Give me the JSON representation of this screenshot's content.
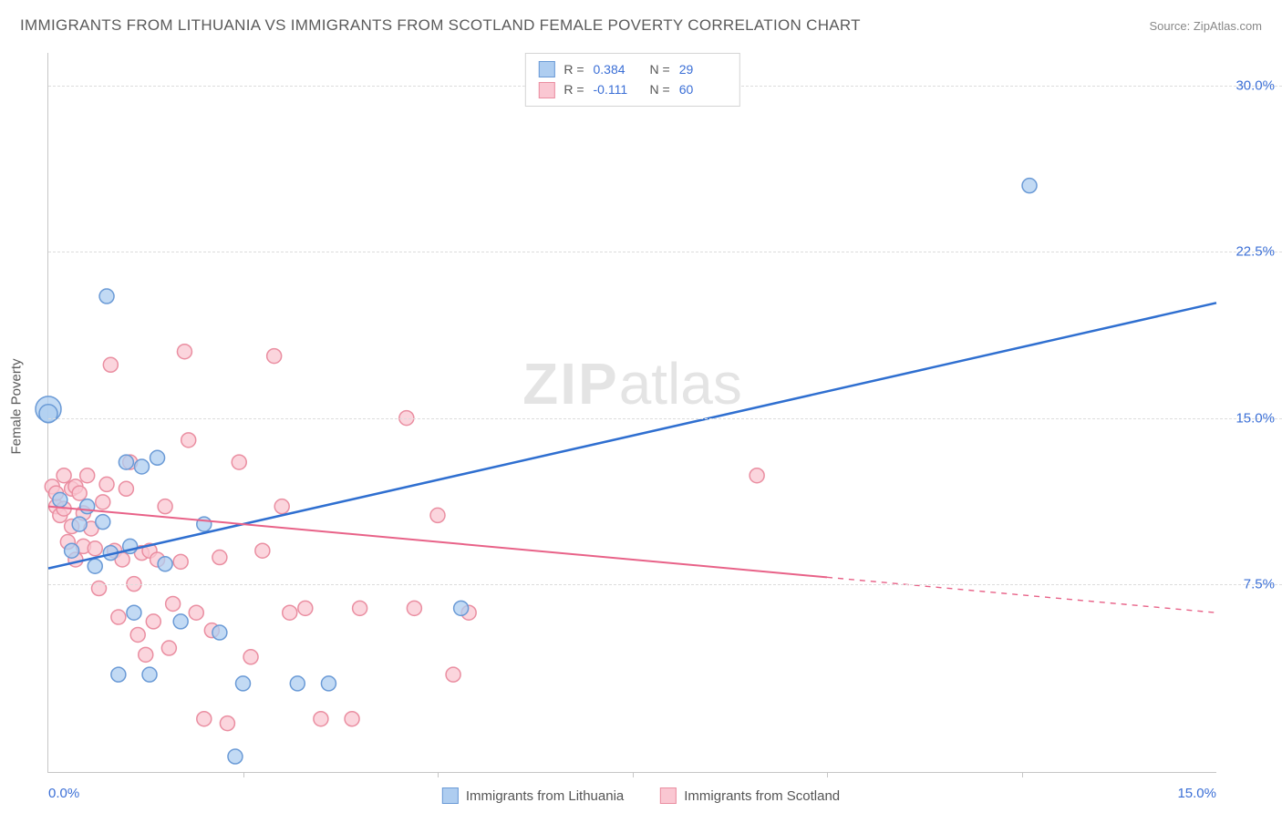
{
  "title": "IMMIGRANTS FROM LITHUANIA VS IMMIGRANTS FROM SCOTLAND FEMALE POVERTY CORRELATION CHART",
  "source_label": "Source: ZipAtlas.com",
  "watermark": {
    "zip": "ZIP",
    "atlas": "atlas"
  },
  "y_axis_title": "Female Poverty",
  "chart": {
    "type": "scatter-with-regression",
    "background_color": "#ffffff",
    "grid_color": "#dcdcdc",
    "axis_color": "#c6c6c6",
    "tick_label_color": "#3b6fd6",
    "tick_fontsize": 15,
    "xlim": [
      0.0,
      15.0
    ],
    "ylim": [
      -1.0,
      31.5
    ],
    "x_ticks": [
      0.0,
      15.0
    ],
    "x_tick_labels": [
      "0.0%",
      "15.0%"
    ],
    "x_minor_ticks": [
      2.5,
      5.0,
      7.5,
      10.0,
      12.5
    ],
    "y_gridlines": [
      7.5,
      15.0,
      22.5,
      30.0
    ],
    "y_tick_labels": [
      "7.5%",
      "15.0%",
      "22.5%",
      "30.0%"
    ],
    "series": [
      {
        "name": "Immigrants from Lithuania",
        "color_fill": "#aecdf0",
        "color_stroke": "#6a9ad6",
        "marker_radius": 8,
        "marker_opacity": 0.75,
        "R": "0.384",
        "N": "29",
        "regression": {
          "x1": 0.0,
          "y1": 8.2,
          "x2": 15.0,
          "y2": 20.2,
          "color": "#2f6fd0",
          "width": 2.5,
          "solid_until_x": 15.0
        },
        "points": [
          [
            0.0,
            15.4,
            14
          ],
          [
            0.0,
            15.2,
            10
          ],
          [
            0.15,
            11.3,
            8
          ],
          [
            0.3,
            9.0,
            8
          ],
          [
            0.4,
            10.2,
            8
          ],
          [
            0.5,
            11.0,
            8
          ],
          [
            0.6,
            8.3,
            8
          ],
          [
            0.7,
            10.3,
            8
          ],
          [
            0.75,
            20.5,
            8
          ],
          [
            0.8,
            8.9,
            8
          ],
          [
            0.9,
            3.4,
            8
          ],
          [
            1.0,
            13.0,
            8
          ],
          [
            1.05,
            9.2,
            8
          ],
          [
            1.1,
            6.2,
            8
          ],
          [
            1.2,
            12.8,
            8
          ],
          [
            1.3,
            3.4,
            8
          ],
          [
            1.4,
            13.2,
            8
          ],
          [
            1.5,
            8.4,
            8
          ],
          [
            1.7,
            5.8,
            8
          ],
          [
            2.0,
            10.2,
            8
          ],
          [
            2.2,
            5.3,
            8
          ],
          [
            2.4,
            -0.3,
            8
          ],
          [
            2.5,
            3.0,
            8
          ],
          [
            3.2,
            3.0,
            8
          ],
          [
            3.6,
            3.0,
            8
          ],
          [
            5.3,
            6.4,
            8
          ],
          [
            12.6,
            25.5,
            8
          ]
        ]
      },
      {
        "name": "Immigrants from Scotland",
        "color_fill": "#fac7d2",
        "color_stroke": "#ea8ea1",
        "marker_radius": 8,
        "marker_opacity": 0.75,
        "R": "-0.111",
        "N": "60",
        "regression": {
          "x1": 0.0,
          "y1": 11.0,
          "x2": 15.0,
          "y2": 6.2,
          "color": "#e86288",
          "width": 2,
          "solid_until_x": 10.0
        },
        "points": [
          [
            0.05,
            11.9,
            8
          ],
          [
            0.1,
            11.0,
            8
          ],
          [
            0.1,
            11.6,
            8
          ],
          [
            0.15,
            10.6,
            8
          ],
          [
            0.2,
            12.4,
            8
          ],
          [
            0.2,
            10.9,
            8
          ],
          [
            0.25,
            9.4,
            8
          ],
          [
            0.3,
            11.8,
            8
          ],
          [
            0.3,
            10.1,
            8
          ],
          [
            0.35,
            8.6,
            8
          ],
          [
            0.35,
            11.9,
            8
          ],
          [
            0.4,
            11.6,
            8
          ],
          [
            0.45,
            9.2,
            8
          ],
          [
            0.45,
            10.7,
            8
          ],
          [
            0.5,
            12.4,
            8
          ],
          [
            0.55,
            10.0,
            8
          ],
          [
            0.6,
            9.1,
            8
          ],
          [
            0.65,
            7.3,
            8
          ],
          [
            0.7,
            11.2,
            8
          ],
          [
            0.75,
            12.0,
            8
          ],
          [
            0.8,
            17.4,
            8
          ],
          [
            0.85,
            9.0,
            8
          ],
          [
            0.9,
            6.0,
            8
          ],
          [
            0.95,
            8.6,
            8
          ],
          [
            1.0,
            11.8,
            8
          ],
          [
            1.05,
            13.0,
            8
          ],
          [
            1.1,
            7.5,
            8
          ],
          [
            1.15,
            5.2,
            8
          ],
          [
            1.2,
            8.9,
            8
          ],
          [
            1.25,
            4.3,
            8
          ],
          [
            1.3,
            9.0,
            8
          ],
          [
            1.35,
            5.8,
            8
          ],
          [
            1.4,
            8.6,
            8
          ],
          [
            1.5,
            11.0,
            8
          ],
          [
            1.55,
            4.6,
            8
          ],
          [
            1.6,
            6.6,
            8
          ],
          [
            1.7,
            8.5,
            8
          ],
          [
            1.75,
            18.0,
            8
          ],
          [
            1.8,
            14.0,
            8
          ],
          [
            1.9,
            6.2,
            8
          ],
          [
            2.0,
            1.4,
            8
          ],
          [
            2.1,
            5.4,
            8
          ],
          [
            2.2,
            8.7,
            8
          ],
          [
            2.3,
            1.2,
            8
          ],
          [
            2.45,
            13.0,
            8
          ],
          [
            2.6,
            4.2,
            8
          ],
          [
            2.75,
            9.0,
            8
          ],
          [
            2.9,
            17.8,
            8
          ],
          [
            3.0,
            11.0,
            8
          ],
          [
            3.1,
            6.2,
            8
          ],
          [
            3.3,
            6.4,
            8
          ],
          [
            3.5,
            1.4,
            8
          ],
          [
            3.9,
            1.4,
            8
          ],
          [
            4.0,
            6.4,
            8
          ],
          [
            4.6,
            15.0,
            8
          ],
          [
            4.7,
            6.4,
            8
          ],
          [
            5.0,
            10.6,
            8
          ],
          [
            5.2,
            3.4,
            8
          ],
          [
            5.4,
            6.2,
            8
          ],
          [
            9.1,
            12.4,
            8
          ]
        ]
      }
    ]
  },
  "legend_bottom": {
    "items": [
      {
        "label": "Immigrants from Lithuania",
        "fill": "#aecdf0",
        "stroke": "#6a9ad6"
      },
      {
        "label": "Immigrants from Scotland",
        "fill": "#fac7d2",
        "stroke": "#ea8ea1"
      }
    ]
  }
}
